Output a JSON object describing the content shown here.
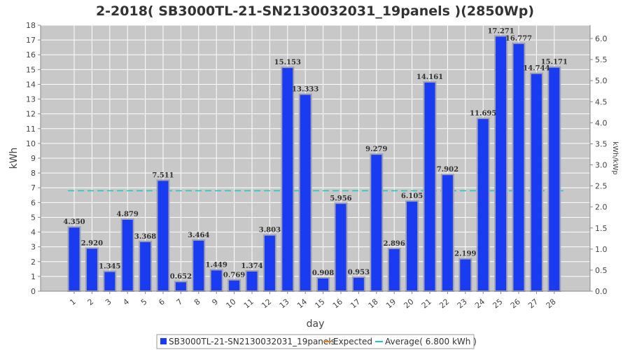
{
  "chart_data": {
    "type": "bar",
    "title": "2-2018( SB3000TL-21-SN2130032031_19panels )(2850Wp)",
    "xlabel": "day",
    "ylabel": "kWh",
    "y2label": "kWh/kWp",
    "categories": [
      "1",
      "2",
      "3",
      "4",
      "5",
      "6",
      "7",
      "8",
      "9",
      "10",
      "11",
      "12",
      "13",
      "14",
      "15",
      "16",
      "17",
      "18",
      "19",
      "20",
      "21",
      "22",
      "23",
      "24",
      "25",
      "26",
      "27",
      "28"
    ],
    "series": [
      {
        "name": "SB3000TL-21-SN2130032031_19panels",
        "color": "#1a3cf0",
        "values": [
          4.35,
          2.92,
          1.345,
          4.879,
          3.368,
          7.511,
          0.652,
          3.464,
          1.449,
          0.769,
          1.374,
          3.803,
          15.153,
          13.333,
          0.908,
          5.956,
          0.953,
          9.279,
          2.896,
          6.105,
          14.161,
          7.902,
          2.199,
          11.695,
          17.271,
          16.777,
          14.744,
          15.171
        ],
        "labels": [
          "4.350",
          "2.920",
          "1.345",
          "4.879",
          "3.368",
          "7.511",
          "0.652",
          "3.464",
          "1.449",
          "0.769",
          "1.374",
          "3.803",
          "15.153",
          "13.333",
          "0.908",
          "5.956",
          "0.953",
          "9.279",
          "2.896",
          "6.105",
          "14.161",
          "7.902",
          "2.199",
          "11.695",
          "17.271",
          "16.777",
          "14.744",
          "15.171"
        ]
      }
    ],
    "expected": {
      "name": "Expected",
      "color": "#f07c1a"
    },
    "average": {
      "name": "Average( 6.800 kWh )",
      "value": 6.8,
      "color": "#1ac8c8"
    },
    "ylim": [
      0,
      18
    ],
    "yticks": [
      "0",
      "1",
      "2",
      "3",
      "4",
      "5",
      "6",
      "7",
      "8",
      "9",
      "10",
      "11",
      "12",
      "13",
      "14",
      "15",
      "16",
      "17",
      "18"
    ],
    "y2lim": [
      0,
      6.3158
    ],
    "y2ticks": [
      {
        "label": "0.0",
        "value": 0
      },
      {
        "label": "0.5",
        "value": 0.5
      },
      {
        "label": "1.0",
        "value": 1.0
      },
      {
        "label": "1.5",
        "value": 1.5
      },
      {
        "label": "2.0",
        "value": 2.0
      },
      {
        "label": "2.5",
        "value": 2.5
      },
      {
        "label": "3.0",
        "value": 3.0
      },
      {
        "label": "3.5",
        "value": 3.5
      },
      {
        "label": "4.0",
        "value": 4.0
      },
      {
        "label": "4.5",
        "value": 4.5
      },
      {
        "label": "5.0",
        "value": 5.0
      },
      {
        "label": "5.5",
        "value": 5.5
      },
      {
        "label": "6.0",
        "value": 6.0
      }
    ],
    "grid": true,
    "legend": "bottom-center",
    "colors": {
      "plot_bg": "#c8c8c8",
      "grid": "#ffffff",
      "bar_edge": "#a0a0b4"
    }
  }
}
